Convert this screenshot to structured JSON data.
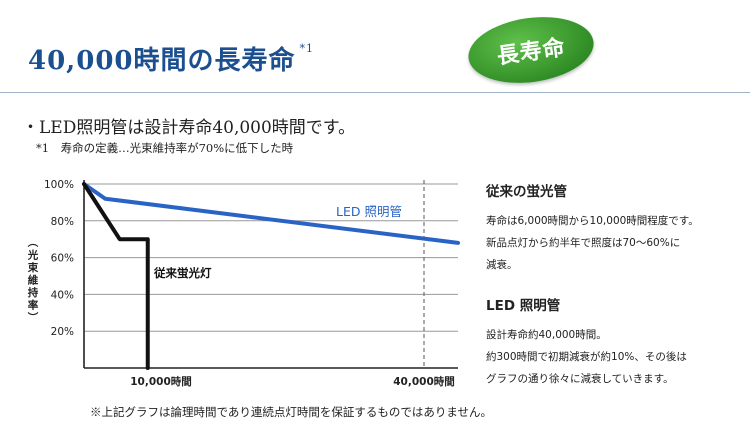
{
  "header": {
    "title": "40,000時間の長寿命",
    "title_mark": "*1",
    "badge": "長寿命"
  },
  "bullet": "・LED照明管は設計寿命40,000時間です。",
  "footnote": "*1　寿命の定義…光束維持率が70%に低下した時",
  "note": "※上記グラフは論理時間であり連続点灯時間を保証するものではありません。",
  "colors": {
    "title": "#1b4f8f",
    "led": "#2a63c6",
    "fluorescent": "#111111",
    "badge": "#3f9d2f"
  },
  "chart_data": {
    "type": "line",
    "title": "",
    "ylabel": "（光束維持率）",
    "xlabel": "",
    "yticks": [
      "100%",
      "80%",
      "60%",
      "40%",
      "20%"
    ],
    "ytick_values": [
      100,
      80,
      60,
      40,
      20
    ],
    "xticks": [
      "10,000時間",
      "40,000時間"
    ],
    "xtick_values": [
      10000,
      40000
    ],
    "ylim": [
      0,
      100
    ],
    "xlim": [
      0,
      44000
    ],
    "grid": true,
    "series": [
      {
        "name": "LED 照明管",
        "color": "#2a63c6",
        "x": [
          0,
          2500,
          44000
        ],
        "y": [
          100,
          92,
          68
        ]
      },
      {
        "name": "従来蛍光灯",
        "color": "#111111",
        "x": [
          0,
          4200,
          7500,
          7500
        ],
        "y": [
          100,
          70,
          70,
          0
        ]
      }
    ]
  },
  "side": {
    "fl": {
      "heading": "従来の蛍光管",
      "lines": [
        "寿命は6,000時間から10,000時間程度です。",
        "新品点灯から約半年で照度は70～60%に",
        "減衰。"
      ]
    },
    "led": {
      "heading": "LED 照明管",
      "lines": [
        "設計寿命約40,000時間。",
        "約300時間で初期減衰が約10%、その後は",
        "グラフの通り徐々に減衰していきます。"
      ]
    }
  }
}
